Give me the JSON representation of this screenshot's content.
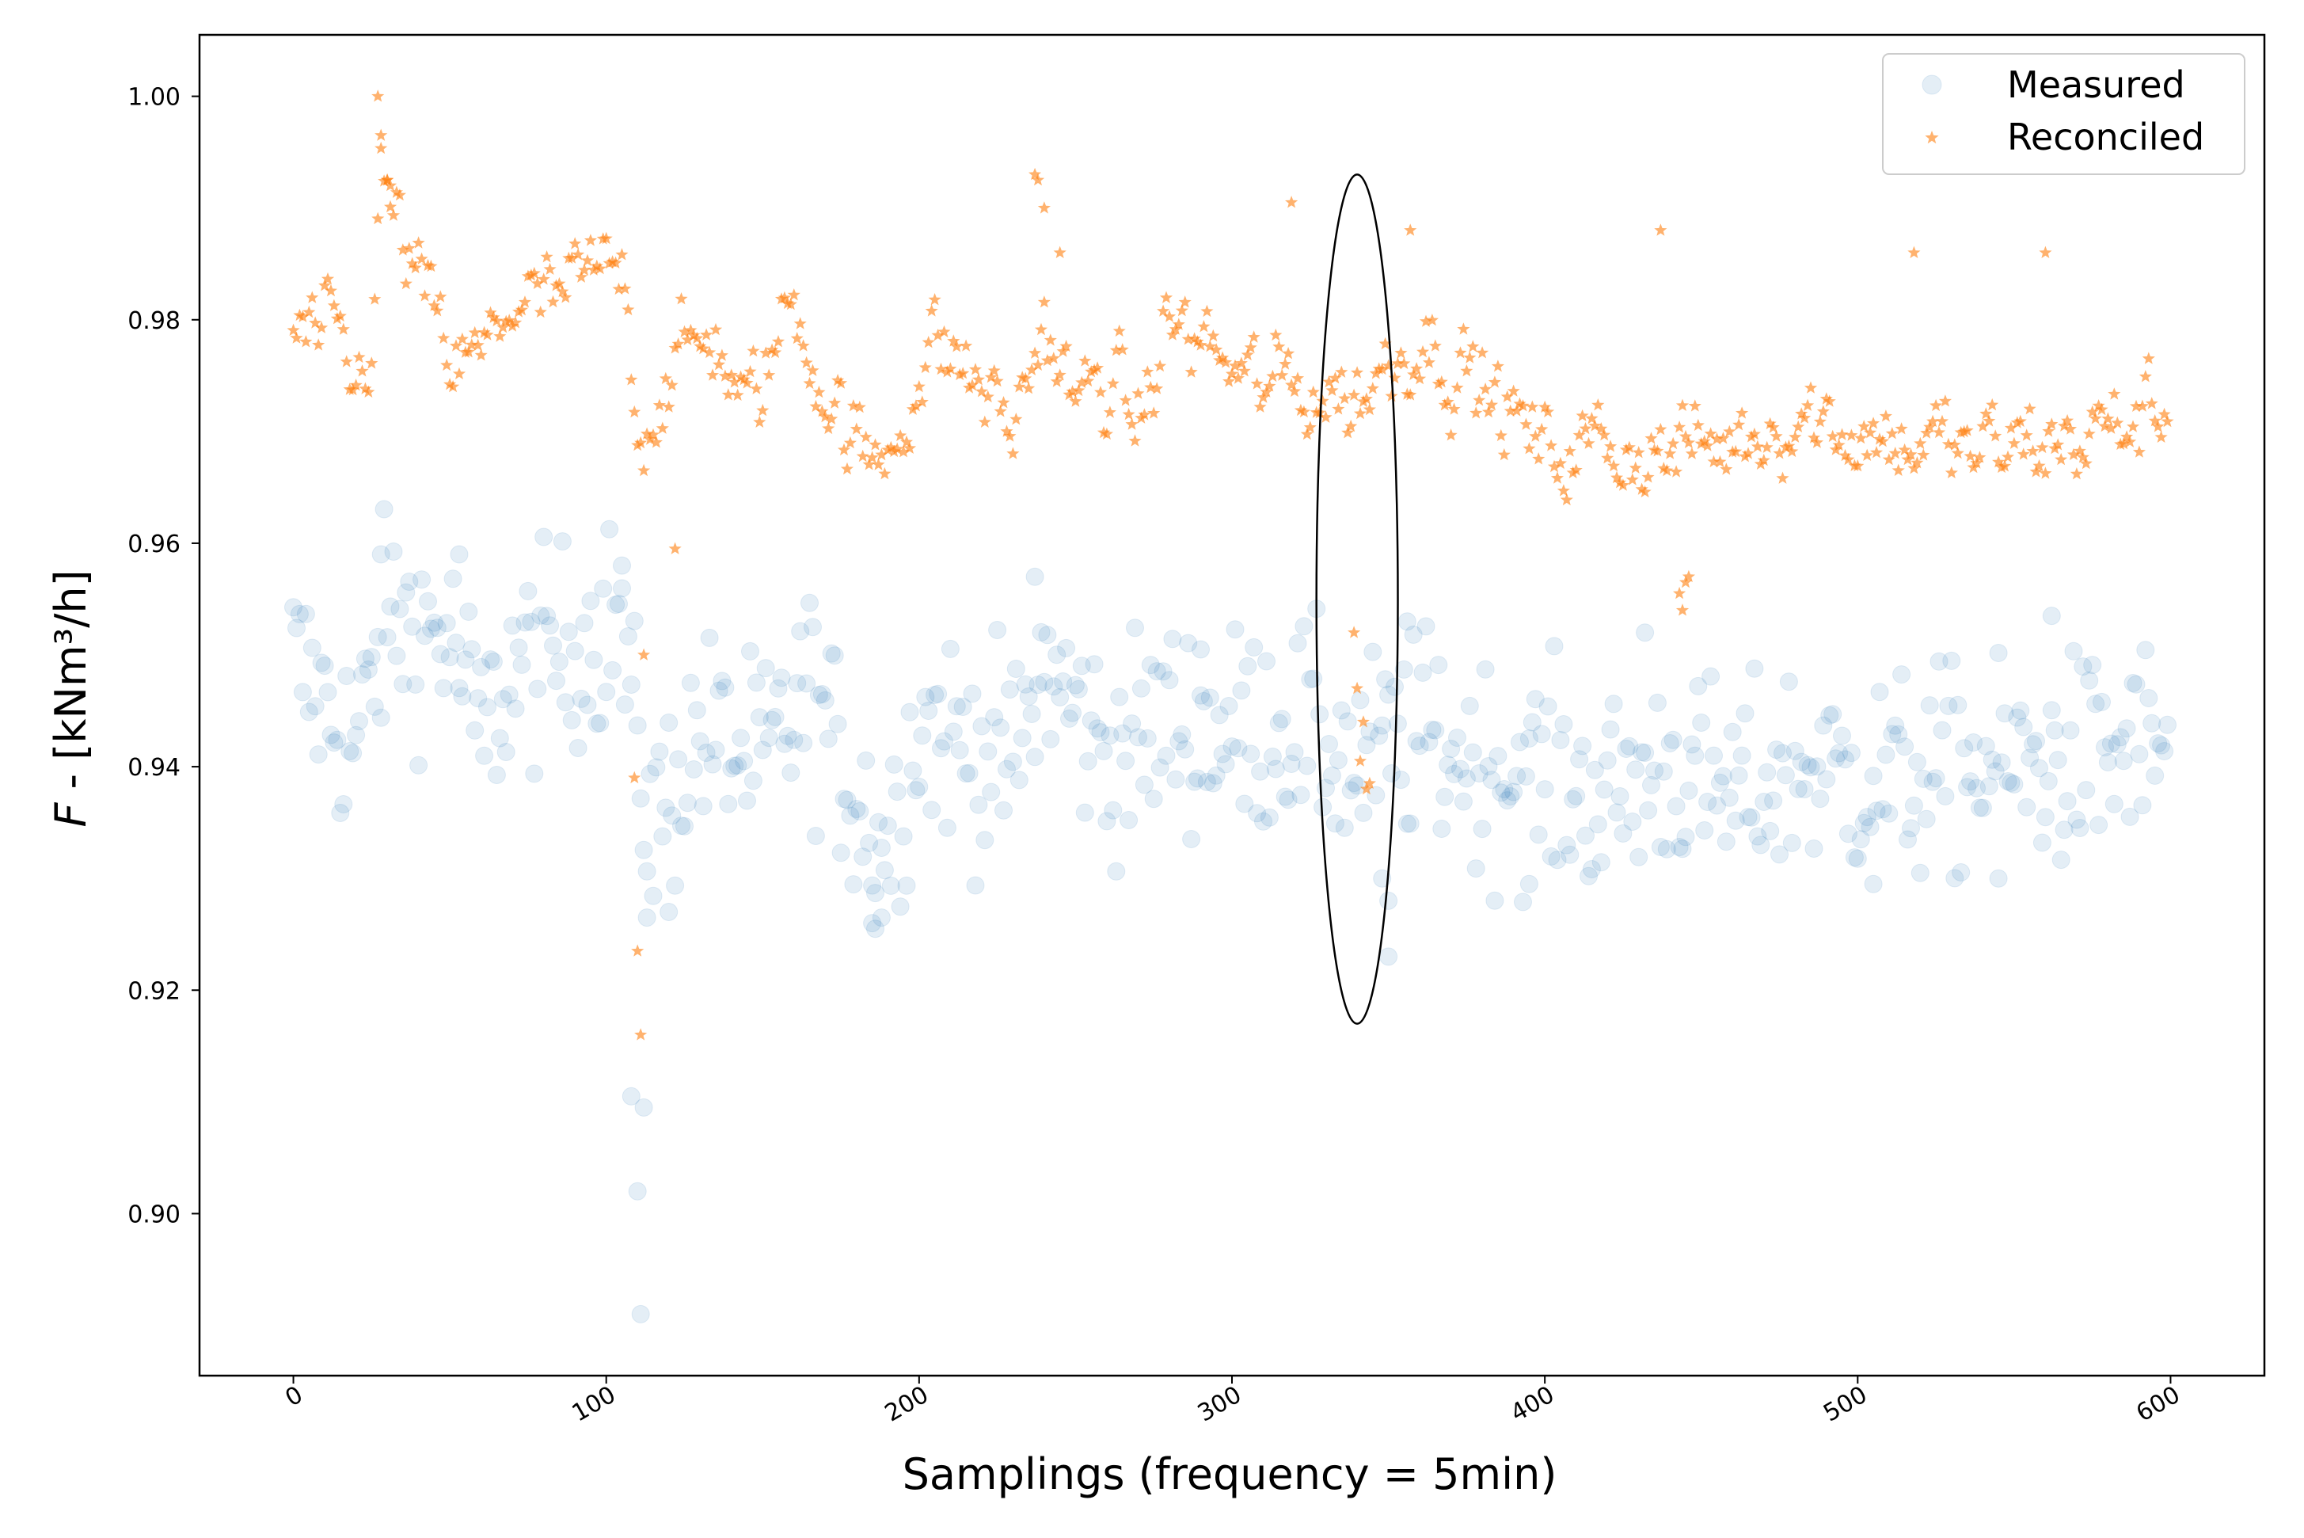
{
  "chart_data": {
    "type": "scatter",
    "title": "",
    "xlabel": "Samplings (frequency = 5min)",
    "ylabel_italic": "F",
    "ylabel_rest": " - [kNm³/h]",
    "xlim": [
      -30,
      630
    ],
    "ylim": [
      0.8855,
      1.0055
    ],
    "xticks": [
      0,
      100,
      200,
      300,
      400,
      500,
      600
    ],
    "xtick_labels": [
      "0",
      "100",
      "200",
      "300",
      "400",
      "500",
      "600"
    ],
    "yticks": [
      0.9,
      0.92,
      0.94,
      0.96,
      0.98,
      1.0
    ],
    "ytick_labels": [
      "0.90",
      "0.92",
      "0.94",
      "0.96",
      "0.98",
      "1.00"
    ],
    "grid": false,
    "legend_position": "top-right",
    "series": [
      {
        "name": "Measured",
        "marker": "circle",
        "color": "#1f77b4",
        "alpha": 0.12
      },
      {
        "name": "Reconciled",
        "marker": "star",
        "color": "#ff7f0e",
        "alpha": 0.6
      }
    ],
    "annotation": {
      "type": "ellipse",
      "center_x": 340,
      "center_y": 0.955,
      "half_width_x": 13,
      "half_height_y": 0.038,
      "description": "highlighted region"
    },
    "measured_baseline": [
      [
        0,
        0.9495
      ],
      [
        20,
        0.9415
      ],
      [
        30,
        0.9535
      ],
      [
        50,
        0.9515
      ],
      [
        60,
        0.9425
      ],
      [
        70,
        0.9485
      ],
      [
        100,
        0.9525
      ],
      [
        104,
        0.9545
      ],
      [
        110,
        0.9405
      ],
      [
        115,
        0.9345
      ],
      [
        130,
        0.943
      ],
      [
        150,
        0.94
      ],
      [
        165,
        0.947
      ],
      [
        180,
        0.937
      ],
      [
        190,
        0.933
      ],
      [
        200,
        0.944
      ],
      [
        215,
        0.942
      ],
      [
        230,
        0.94
      ],
      [
        240,
        0.949
      ],
      [
        260,
        0.941
      ],
      [
        280,
        0.944
      ],
      [
        300,
        0.943
      ],
      [
        320,
        0.944
      ],
      [
        340,
        0.94
      ],
      [
        360,
        0.943
      ],
      [
        380,
        0.94
      ],
      [
        400,
        0.939
      ],
      [
        420,
        0.937
      ],
      [
        440,
        0.94
      ],
      [
        460,
        0.937
      ],
      [
        480,
        0.94
      ],
      [
        500,
        0.939
      ],
      [
        520,
        0.939
      ],
      [
        540,
        0.94
      ],
      [
        560,
        0.94
      ],
      [
        580,
        0.941
      ],
      [
        600,
        0.942
      ]
    ],
    "measured_spread": 0.0085,
    "measured_extras": [
      [
        108,
        0.9105
      ],
      [
        110,
        0.902
      ],
      [
        111,
        0.891
      ],
      [
        112,
        0.9095
      ],
      [
        113,
        0.9265
      ],
      [
        120,
        0.927
      ],
      [
        185,
        0.926
      ],
      [
        186,
        0.9255
      ],
      [
        188,
        0.9265
      ],
      [
        28,
        0.959
      ],
      [
        53,
        0.959
      ],
      [
        105,
        0.958
      ],
      [
        237,
        0.957
      ],
      [
        356,
        0.953
      ],
      [
        562,
        0.9535
      ],
      [
        432,
        0.952
      ],
      [
        350,
        0.928
      ],
      [
        348,
        0.93
      ],
      [
        395,
        0.9295
      ],
      [
        505,
        0.9295
      ],
      [
        545,
        0.93
      ],
      [
        290,
        0.9505
      ],
      [
        350,
        0.923
      ]
    ],
    "reconciled_baseline": [
      [
        0,
        0.979
      ],
      [
        15,
        0.977
      ],
      [
        20,
        0.973
      ],
      [
        25,
        0.979
      ],
      [
        28,
        0.992
      ],
      [
        40,
        0.983
      ],
      [
        50,
        0.976
      ],
      [
        60,
        0.976
      ],
      [
        70,
        0.982
      ],
      [
        80,
        0.981
      ],
      [
        100,
        0.984
      ],
      [
        107,
        0.984
      ],
      [
        110,
        0.97
      ],
      [
        120,
        0.975
      ],
      [
        135,
        0.979
      ],
      [
        145,
        0.971
      ],
      [
        160,
        0.982
      ],
      [
        170,
        0.974
      ],
      [
        185,
        0.966
      ],
      [
        195,
        0.972
      ],
      [
        205,
        0.978
      ],
      [
        220,
        0.974
      ],
      [
        230,
        0.97
      ],
      [
        240,
        0.98
      ],
      [
        250,
        0.972
      ],
      [
        260,
        0.975
      ],
      [
        270,
        0.97
      ],
      [
        280,
        0.98
      ],
      [
        295,
        0.977
      ],
      [
        305,
        0.974
      ],
      [
        320,
        0.974
      ],
      [
        340,
        0.973
      ],
      [
        360,
        0.979
      ],
      [
        380,
        0.974
      ],
      [
        400,
        0.968
      ],
      [
        420,
        0.969
      ],
      [
        440,
        0.968
      ],
      [
        460,
        0.969
      ],
      [
        480,
        0.972
      ],
      [
        500,
        0.97
      ],
      [
        520,
        0.969
      ],
      [
        540,
        0.968
      ],
      [
        560,
        0.969
      ],
      [
        580,
        0.97
      ],
      [
        600,
        0.972
      ]
    ],
    "reconciled_spread": 0.0065,
    "reconciled_extras": [
      [
        27,
        1.0
      ],
      [
        28,
        0.9965
      ],
      [
        30,
        0.9925
      ],
      [
        31,
        0.992
      ],
      [
        237,
        0.993
      ],
      [
        238,
        0.9925
      ],
      [
        240,
        0.99
      ],
      [
        245,
        0.986
      ],
      [
        319,
        0.9905
      ],
      [
        357,
        0.988
      ],
      [
        437,
        0.988
      ],
      [
        518,
        0.986
      ],
      [
        560,
        0.986
      ],
      [
        109,
        0.939
      ],
      [
        110,
        0.9235
      ],
      [
        111,
        0.916
      ],
      [
        112,
        0.95
      ],
      [
        122,
        0.9595
      ],
      [
        339,
        0.952
      ],
      [
        340,
        0.947
      ],
      [
        342,
        0.944
      ],
      [
        341,
        0.9405
      ],
      [
        343,
        0.938
      ],
      [
        344,
        0.9385
      ],
      [
        445,
        0.9565
      ],
      [
        446,
        0.957
      ],
      [
        444,
        0.954
      ],
      [
        443,
        0.9555
      ]
    ],
    "n_points": 600
  },
  "legend": {
    "items": [
      {
        "label": "Measured"
      },
      {
        "label": "Reconciled"
      }
    ]
  }
}
